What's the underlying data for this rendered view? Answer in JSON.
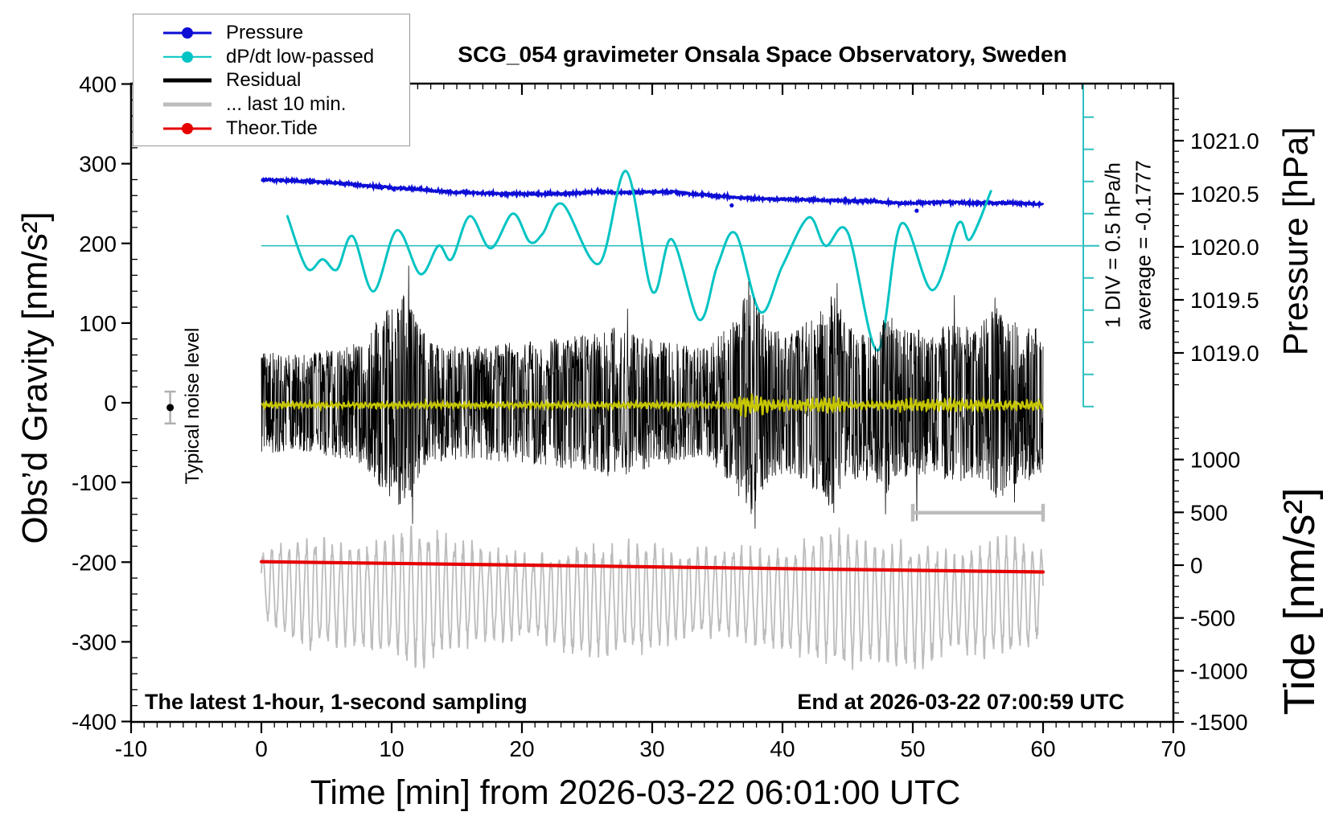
{
  "title": "SCG_054 gravimeter Onsala Space Observatory, Sweden",
  "annotations": {
    "sampling_note": "The latest 1-hour, 1-second sampling",
    "end_note": "End at 2026-03-22 07:00:59 UTC",
    "noise_label": "Typical noise level",
    "div_label": "1 DIV = 0.5 hPa/h",
    "average_label": "average = -0.1777"
  },
  "legend": [
    {
      "label": "Pressure",
      "color": "#0d0dd6",
      "dot": true,
      "lw": 3
    },
    {
      "label": "dP/dt low-passed",
      "color": "#00c3c3",
      "dot": true,
      "lw": 2.5
    },
    {
      "label": "Residual",
      "color": "#000000",
      "dot": false,
      "lw": 5
    },
    {
      "label": "... last 10 min.",
      "color": "#bcbcbc",
      "dot": false,
      "lw": 5
    },
    {
      "label": "Theor.Tide",
      "color": "#e60000",
      "dot": true,
      "lw": 3
    }
  ],
  "axes": {
    "x": {
      "label": "Time [min] from 2026-03-22 06:01:00 UTC",
      "min": -10,
      "max": 70,
      "major": 10,
      "minor": 1,
      "tick_values": [
        -10,
        0,
        10,
        20,
        30,
        40,
        50,
        60,
        70
      ],
      "tick_labels": [
        "-10",
        "0",
        "10",
        "20",
        "30",
        "40",
        "50",
        "60",
        "70"
      ]
    },
    "gravity": {
      "label": "Obs’d Gravity [nm/s²]",
      "min": -400,
      "max": 400,
      "major": 100,
      "minor": 20,
      "tick_values": [
        400,
        300,
        200,
        100,
        0,
        -100,
        -200,
        -300,
        -400
      ],
      "tick_labels": [
        "400",
        "300",
        "200",
        "100",
        "0",
        "-100",
        "-200",
        "-300",
        "-400"
      ]
    },
    "pressure": {
      "label": "Pressure [hPa]",
      "minor": 0.1,
      "minor_range": [
        1018.7,
        1021.4
      ],
      "tick_values": [
        1021.0,
        1020.5,
        1020.0,
        1019.5,
        1019.0
      ],
      "tick_labels": [
        "1021.0",
        "1020.5",
        "1020.0",
        "1019.5",
        "1019.0"
      ]
    },
    "tide": {
      "label": "Tide [nm/s²]",
      "minor": 100,
      "minor_range": [
        -1400,
        1500
      ],
      "tick_values": [
        1000,
        500,
        0,
        -500,
        -1000,
        -1500
      ],
      "tick_labels": [
        "1000",
        "500",
        "0",
        "-500",
        "-1000",
        "-1500"
      ]
    }
  },
  "chart_data": {
    "type": "line",
    "x_range": [
      -10,
      70
    ],
    "x_unit": "min",
    "noise_seed": 20260322,
    "dpdt_reference": {
      "div_unit_hpa_per_h": 0.5,
      "average_hpa_per_h": -0.1777,
      "zero_level_gravity": 197
    },
    "last10_bracket": {
      "t_start": 50,
      "t_end": 60,
      "gravity_level": -138
    },
    "noise_marker": {
      "t": -7,
      "gravity": -6,
      "error": 20
    },
    "series": [
      {
        "name": "Pressure",
        "axis": "pressure",
        "color": "#0d0dd6",
        "style": "noisy-line",
        "width": 3.2,
        "noise": 0.009,
        "points": [
          [
            0,
            1020.63
          ],
          [
            2,
            1020.625
          ],
          [
            4,
            1020.615
          ],
          [
            6,
            1020.6
          ],
          [
            8,
            1020.575
          ],
          [
            10,
            1020.555
          ],
          [
            12,
            1020.545
          ],
          [
            14,
            1020.52
          ],
          [
            16,
            1020.51
          ],
          [
            18,
            1020.5
          ],
          [
            20,
            1020.5
          ],
          [
            22,
            1020.5
          ],
          [
            24,
            1020.505
          ],
          [
            26,
            1020.52
          ],
          [
            27.5,
            1020.51
          ],
          [
            29,
            1020.515
          ],
          [
            31,
            1020.52
          ],
          [
            33,
            1020.5
          ],
          [
            35,
            1020.48
          ],
          [
            37,
            1020.46
          ],
          [
            39,
            1020.45
          ],
          [
            41,
            1020.445
          ],
          [
            43,
            1020.44
          ],
          [
            45,
            1020.435
          ],
          [
            47,
            1020.43
          ],
          [
            49,
            1020.41
          ],
          [
            51,
            1020.415
          ],
          [
            53,
            1020.42
          ],
          [
            55,
            1020.41
          ],
          [
            57,
            1020.415
          ],
          [
            59,
            1020.405
          ],
          [
            60,
            1020.4
          ]
        ],
        "outliers": [
          [
            36.1,
            1020.39
          ],
          [
            50.3,
            1020.34
          ]
        ]
      },
      {
        "name": "dP/dt low-passed",
        "axis": "dpdt",
        "color": "#00c3c3",
        "style": "smooth",
        "width": 3,
        "points": [
          [
            2,
            0.46
          ],
          [
            3.5,
            -0.35
          ],
          [
            4.7,
            -0.21
          ],
          [
            5.8,
            -0.37
          ],
          [
            7,
            0.15
          ],
          [
            8.6,
            -0.71
          ],
          [
            10.4,
            0.24
          ],
          [
            12.2,
            -0.44
          ],
          [
            13.6,
            0.0
          ],
          [
            14.6,
            -0.21
          ],
          [
            16,
            0.46
          ],
          [
            17.6,
            -0.04
          ],
          [
            19.3,
            0.5
          ],
          [
            20.6,
            0.06
          ],
          [
            21.6,
            0.19
          ],
          [
            23.1,
            0.65
          ],
          [
            25.9,
            -0.28
          ],
          [
            28,
            1.16
          ],
          [
            30,
            -0.71
          ],
          [
            31.5,
            0.1
          ],
          [
            33.6,
            -1.15
          ],
          [
            35,
            -0.31
          ],
          [
            36.4,
            0.19
          ],
          [
            38.3,
            -1.03
          ],
          [
            40,
            -0.31
          ],
          [
            42,
            0.44
          ],
          [
            43.3,
            0.0
          ],
          [
            45,
            0.21
          ],
          [
            47.3,
            -1.63
          ],
          [
            49.1,
            0.34
          ],
          [
            51.5,
            -0.69
          ],
          [
            53.5,
            0.35
          ],
          [
            54.4,
            0.1
          ],
          [
            56,
            0.85
          ]
        ]
      },
      {
        "name": "Residual",
        "axis": "gravity",
        "color": "#000000",
        "style": "noise-band",
        "width": 0.8,
        "center": 0,
        "envelope": [
          [
            0,
            65
          ],
          [
            3,
            60
          ],
          [
            6,
            70
          ],
          [
            8,
            80
          ],
          [
            9,
            110
          ],
          [
            10,
            120
          ],
          [
            11,
            140
          ],
          [
            12,
            100
          ],
          [
            13,
            75
          ],
          [
            16,
            70
          ],
          [
            19,
            75
          ],
          [
            22,
            80
          ],
          [
            25,
            85
          ],
          [
            27,
            95
          ],
          [
            29,
            85
          ],
          [
            32,
            75
          ],
          [
            34,
            70
          ],
          [
            36,
            100
          ],
          [
            37.5,
            145
          ],
          [
            39,
            95
          ],
          [
            41,
            90
          ],
          [
            43,
            120
          ],
          [
            44,
            140
          ],
          [
            45,
            95
          ],
          [
            47,
            100
          ],
          [
            48,
            115
          ],
          [
            49,
            95
          ],
          [
            51,
            90
          ],
          [
            53,
            100
          ],
          [
            55,
            95
          ],
          [
            56.5,
            125
          ],
          [
            58,
            100
          ],
          [
            60,
            95
          ]
        ],
        "spikes": [
          [
            11.3,
            172
          ],
          [
            11.6,
            -152
          ],
          [
            28.1,
            118
          ],
          [
            37.4,
            152
          ],
          [
            37.9,
            -158
          ],
          [
            44.2,
            150
          ],
          [
            47.9,
            -140
          ],
          [
            50.3,
            -148
          ],
          [
            53.2,
            135
          ],
          [
            56.3,
            132
          ],
          [
            57.8,
            -125
          ]
        ]
      },
      {
        "name": "Residual smoothed",
        "axis": "gravity",
        "color": "#c6c600",
        "style": "noise-line",
        "width": 2.2,
        "center": -3,
        "envelope": [
          [
            0,
            4
          ],
          [
            36,
            4
          ],
          [
            36.8,
            13
          ],
          [
            38.5,
            13
          ],
          [
            39.5,
            6
          ],
          [
            42,
            10
          ],
          [
            44,
            11
          ],
          [
            45,
            5
          ],
          [
            48,
            5
          ],
          [
            49,
            8
          ],
          [
            55,
            8
          ],
          [
            57,
            6
          ],
          [
            60,
            6
          ]
        ]
      },
      {
        "name": "... last 10 min.",
        "axis": "tide",
        "color": "#bcbcbc",
        "style": "oscillation",
        "width": 1.8,
        "period_min": 0.72,
        "center_points": [
          [
            0,
            -180
          ],
          [
            5,
            -280
          ],
          [
            10,
            -300
          ],
          [
            15,
            -270
          ],
          [
            20,
            -300
          ],
          [
            25,
            -340
          ],
          [
            30,
            -300
          ],
          [
            35,
            -260
          ],
          [
            40,
            -310
          ],
          [
            45,
            -330
          ],
          [
            50,
            -380
          ],
          [
            55,
            -330
          ],
          [
            60,
            -280
          ]
        ],
        "amplitude_points": [
          [
            0,
            280
          ],
          [
            2,
            420
          ],
          [
            4,
            520
          ],
          [
            6,
            430
          ],
          [
            8,
            480
          ],
          [
            10,
            520
          ],
          [
            12,
            640
          ],
          [
            13,
            600
          ],
          [
            15,
            480
          ],
          [
            17,
            430
          ],
          [
            19,
            380
          ],
          [
            21,
            360
          ],
          [
            23,
            480
          ],
          [
            25,
            520
          ],
          [
            27,
            470
          ],
          [
            29,
            500
          ],
          [
            31,
            430
          ],
          [
            33,
            400
          ],
          [
            35,
            380
          ],
          [
            37,
            440
          ],
          [
            39,
            430
          ],
          [
            41,
            470
          ],
          [
            43,
            560
          ],
          [
            45,
            620
          ],
          [
            47,
            520
          ],
          [
            49,
            560
          ],
          [
            51,
            540
          ],
          [
            53,
            420
          ],
          [
            55,
            500
          ],
          [
            57,
            540
          ],
          [
            59,
            460
          ],
          [
            60,
            380
          ]
        ]
      },
      {
        "name": "Theor.Tide",
        "axis": "tide",
        "color": "#e60000",
        "style": "thick-line",
        "width": 4.2,
        "points": [
          [
            0,
            33
          ],
          [
            10,
            17
          ],
          [
            20,
            1
          ],
          [
            30,
            -16
          ],
          [
            40,
            -33
          ],
          [
            50,
            -49
          ],
          [
            60,
            -65
          ]
        ]
      }
    ]
  }
}
